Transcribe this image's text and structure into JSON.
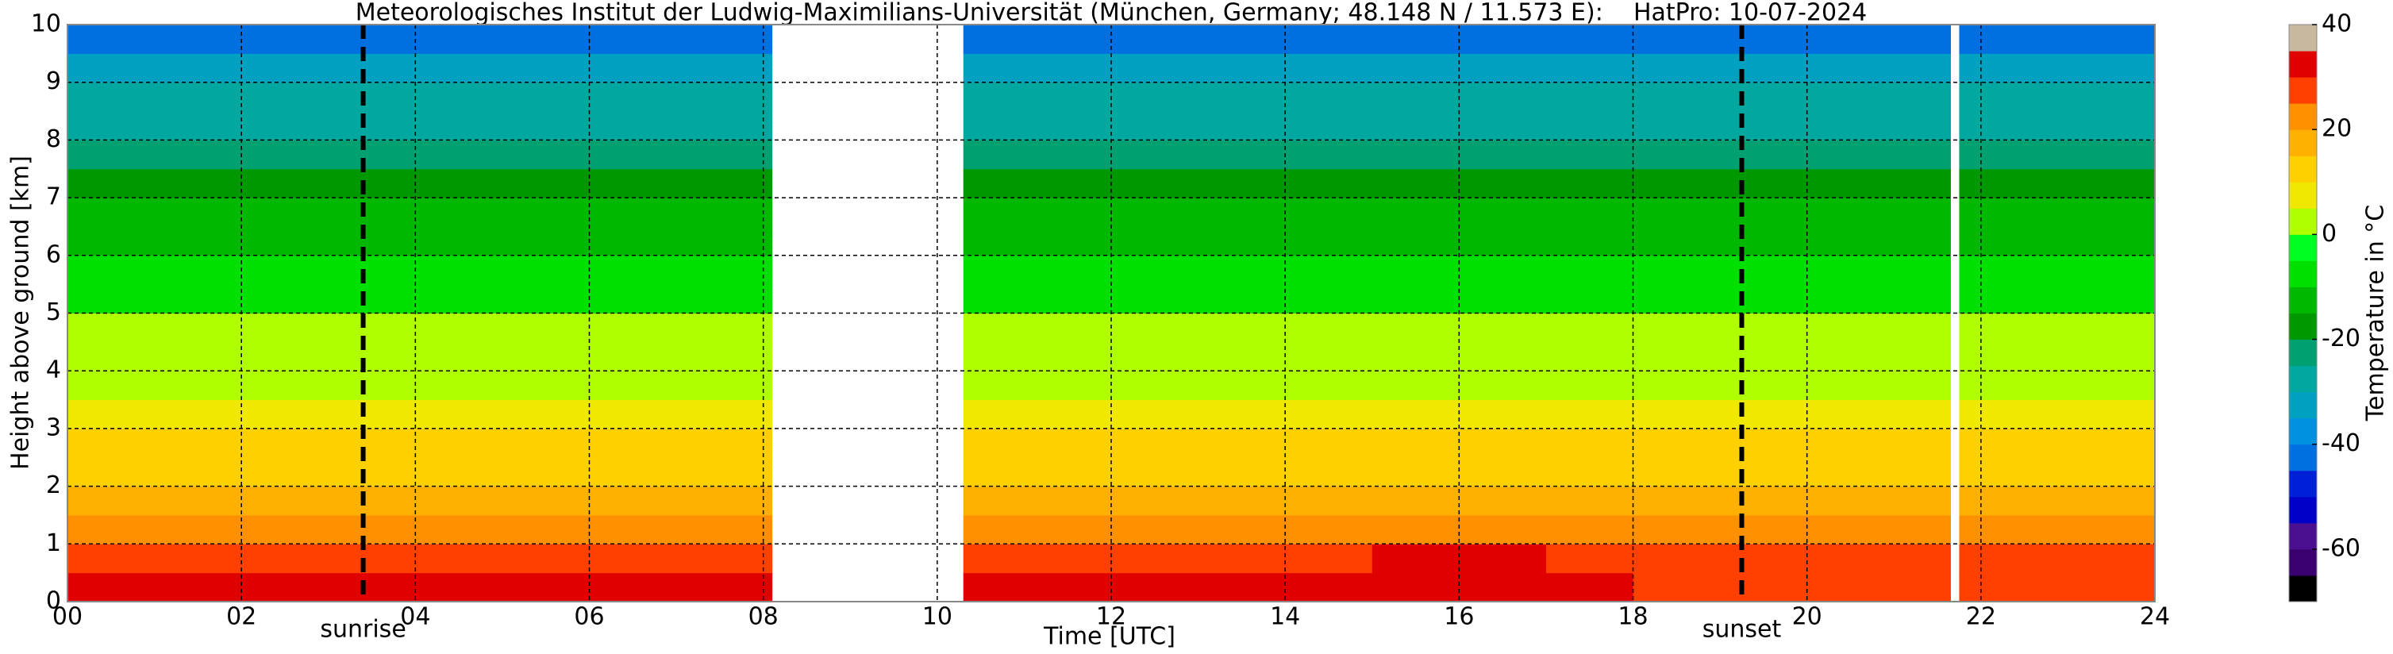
{
  "chart_data": {
    "type": "heatmap",
    "title": "Meteorologisches Institut der Ludwig-Maximilians-Universität (München, Germany; 48.148 N / 11.573 E):    HatPro: 10-07-2024",
    "x_label": "Time [UTC]",
    "y_label": "Height above ground [km]",
    "colorbar_label": "Temperature in °C",
    "x": [
      0,
      2,
      4,
      6,
      8.1,
      10.3,
      12,
      14,
      15,
      17,
      18,
      20,
      21.65,
      21.75,
      24
    ],
    "y": [
      0,
      0.5,
      1,
      1.5,
      2,
      2.5,
      3,
      3.5,
      4,
      5,
      6,
      7,
      7.5,
      8,
      9,
      9.5,
      10
    ],
    "values": [
      [
        31,
        27,
        22,
        18,
        14,
        11,
        8,
        5,
        1,
        -6,
        -13,
        -19,
        -23,
        -28,
        -34,
        -41
      ],
      [
        30,
        26,
        22,
        18,
        14,
        11,
        8,
        5,
        1,
        -6,
        -13,
        -19,
        -23,
        -28,
        -34,
        -41
      ],
      [
        30,
        26,
        21,
        17,
        14,
        11,
        8,
        5,
        1,
        -6,
        -13,
        -19,
        -23,
        -28,
        -34,
        -41
      ],
      [
        31,
        26,
        21,
        17,
        14,
        11,
        8,
        5,
        1,
        -6,
        -13,
        -19,
        -23,
        -28,
        -34,
        -41
      ],
      null,
      [
        31,
        25,
        21,
        17,
        14,
        11,
        8,
        5,
        1,
        -6,
        -13,
        -19,
        -23,
        -28,
        -34,
        -41
      ],
      [
        31,
        26,
        21,
        17,
        14,
        11,
        8,
        5,
        1,
        -6,
        -13,
        -19,
        -23,
        -28,
        -34,
        -41
      ],
      [
        31,
        28,
        22,
        18,
        14,
        11,
        8,
        5,
        1,
        -6,
        -13,
        -19,
        -23,
        -28,
        -34,
        -41
      ],
      [
        32,
        31,
        24,
        18,
        14,
        11,
        8,
        5,
        1,
        -6,
        -13,
        -19,
        -23,
        -28,
        -34,
        -41
      ],
      [
        31,
        27,
        22,
        17,
        14,
        11,
        8,
        5,
        1,
        -6,
        -13,
        -19,
        -23,
        -28,
        -34,
        -41
      ],
      [
        28,
        25,
        21,
        17,
        14,
        11,
        8,
        5,
        1,
        -6,
        -13,
        -19,
        -23,
        -28,
        -34,
        -41
      ],
      [
        28,
        25,
        21,
        17,
        14,
        11,
        8,
        5,
        1,
        -6,
        -13,
        -19,
        -23,
        -28,
        -34,
        -41
      ],
      null,
      [
        28,
        25,
        21,
        17,
        14,
        11,
        8,
        5,
        1,
        -6,
        -13,
        -19,
        -23,
        -28,
        -34,
        -41
      ]
    ],
    "xlim": [
      0,
      24
    ],
    "ylim": [
      0,
      10
    ],
    "xticks": [
      {
        "value": 0,
        "label": "00"
      },
      {
        "value": 2,
        "label": "02"
      },
      {
        "value": 4,
        "label": "04"
      },
      {
        "value": 6,
        "label": "06"
      },
      {
        "value": 8,
        "label": "08"
      },
      {
        "value": 10,
        "label": "10"
      },
      {
        "value": 12,
        "label": "12"
      },
      {
        "value": 14,
        "label": "14"
      },
      {
        "value": 16,
        "label": "16"
      },
      {
        "value": 18,
        "label": "18"
      },
      {
        "value": 20,
        "label": "20"
      },
      {
        "value": 22,
        "label": "22"
      },
      {
        "value": 24,
        "label": "24"
      }
    ],
    "yticks": [
      0,
      1,
      2,
      3,
      4,
      5,
      6,
      7,
      8,
      9,
      10
    ],
    "clim": [
      -70,
      40
    ],
    "cticks": [
      -60,
      -40,
      -20,
      0,
      20,
      40
    ],
    "colormap": [
      "#000000",
      "#3a0070",
      "#4b1090",
      "#0000c8",
      "#0020d8",
      "#0070e0",
      "#0090e0",
      "#00a0c0",
      "#00a8a0",
      "#00a070",
      "#009800",
      "#00b800",
      "#00e000",
      "#00ff20",
      "#b0ff00",
      "#f0e800",
      "#ffd000",
      "#ffb000",
      "#ff9000",
      "#ff4000",
      "#e00000",
      "#c8b8a0"
    ],
    "grid": true,
    "annotations": [
      {
        "text": "sunrise",
        "x": 3.4
      },
      {
        "text": "sunset",
        "x": 19.25
      }
    ]
  }
}
